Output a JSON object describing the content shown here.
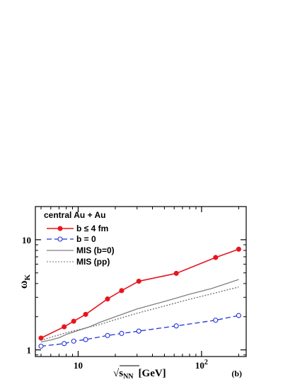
{
  "chart_data": {
    "type": "line",
    "title": "",
    "xlabel_prefix": "√",
    "xlabel_var": "s",
    "xlabel_sub": "NN",
    "xlabel_unit": "[GeV]",
    "ylabel_var": "ω",
    "ylabel_sub": "K",
    "panel_tag": "(b)",
    "x_scale": "log",
    "y_scale": "log",
    "xlim": [
      4.5,
      230
    ],
    "ylim": [
      0.87,
      20
    ],
    "x_ticks": [
      {
        "value": 10,
        "base": "10",
        "exp": ""
      },
      {
        "value": 100,
        "base": "10",
        "exp": "2"
      }
    ],
    "y_ticks": [
      {
        "value": 1,
        "label": "1"
      },
      {
        "value": 10,
        "label": "10"
      }
    ],
    "legend_title": "central Au + Au",
    "legend_position": "top-left",
    "series": [
      {
        "name": "b ≤ 4 fm",
        "color": "#e8141e",
        "line": "solid",
        "marker": "filled-circle",
        "x": [
          5.0,
          7.7,
          9.2,
          11.5,
          17.3,
          22.5,
          31.0,
          62.4,
          130,
          200
        ],
        "y": [
          1.28,
          1.62,
          1.82,
          2.1,
          2.9,
          3.45,
          4.2,
          4.95,
          6.9,
          8.2
        ]
      },
      {
        "name": "b = 0",
        "color": "#1f33d6",
        "line": "dashed",
        "marker": "open-circle",
        "x": [
          5.0,
          7.7,
          9.2,
          11.5,
          17.3,
          22.5,
          31.0,
          62.4,
          130,
          200
        ],
        "y": [
          1.08,
          1.14,
          1.2,
          1.24,
          1.35,
          1.41,
          1.48,
          1.65,
          1.86,
          2.05
        ]
      },
      {
        "name": "MIS (b=0)",
        "color": "#808080",
        "line": "solid",
        "marker": "none",
        "x": [
          5.0,
          6.0,
          7.0,
          8.0,
          10,
          12,
          15,
          20,
          30,
          50,
          80,
          120,
          200
        ],
        "y": [
          1.18,
          1.23,
          1.29,
          1.38,
          1.5,
          1.6,
          1.78,
          2.0,
          2.35,
          2.75,
          3.2,
          3.6,
          4.35
        ]
      },
      {
        "name": "MIS (pp)",
        "color": "#707070",
        "line": "dotted",
        "marker": "none",
        "x": [
          5.0,
          6.0,
          8.0,
          10,
          12,
          15,
          20,
          30,
          50,
          80,
          120,
          200
        ],
        "y": [
          1.22,
          1.3,
          1.43,
          1.52,
          1.6,
          1.7,
          1.88,
          2.15,
          2.5,
          2.88,
          3.22,
          3.72
        ]
      }
    ]
  }
}
